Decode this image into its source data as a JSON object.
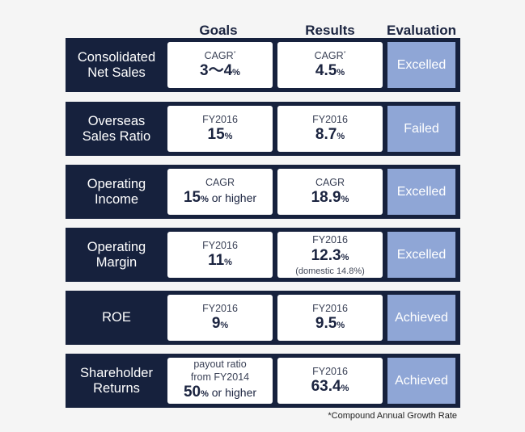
{
  "headers": {
    "goals": "Goals",
    "results": "Results",
    "evaluation": "Evaluation"
  },
  "rows": [
    {
      "label": "Consolidated\nNet Sales",
      "goal": {
        "top": "CAGR",
        "top_mark": "*",
        "value": "3～4",
        "unit": "%",
        "suffix": ""
      },
      "result": {
        "top": "CAGR",
        "top_mark": "*",
        "value": "4.5",
        "unit": "%",
        "note": ""
      },
      "evaluation": "Excelled"
    },
    {
      "label": "Overseas\nSales Ratio",
      "goal": {
        "top": "FY2016",
        "top_mark": "",
        "value": "15",
        "unit": "%",
        "suffix": ""
      },
      "result": {
        "top": "FY2016",
        "top_mark": "",
        "value": "8.7",
        "unit": "%",
        "note": ""
      },
      "evaluation": "Failed"
    },
    {
      "label": "Operating\nIncome",
      "goal": {
        "top": "CAGR",
        "top_mark": "",
        "value": "15",
        "unit": "%",
        "suffix": " or higher"
      },
      "result": {
        "top": "CAGR",
        "top_mark": "",
        "value": "18.9",
        "unit": "%",
        "note": ""
      },
      "evaluation": "Excelled"
    },
    {
      "label": "Operating\nMargin",
      "goal": {
        "top": "FY2016",
        "top_mark": "",
        "value": "11",
        "unit": "%",
        "suffix": ""
      },
      "result": {
        "top": "FY2016",
        "top_mark": "",
        "value": "12.3",
        "unit": "%",
        "note": "(domestic 14.8%)"
      },
      "evaluation": "Excelled"
    },
    {
      "label": "ROE",
      "goal": {
        "top": "FY2016",
        "top_mark": "",
        "value": "9",
        "unit": "%",
        "suffix": ""
      },
      "result": {
        "top": "FY2016",
        "top_mark": "",
        "value": "9.5",
        "unit": "%",
        "note": ""
      },
      "evaluation": "Achieved"
    },
    {
      "label": "Shareholder\nReturns",
      "goal": {
        "top": "payout ratio\nfrom FY2014",
        "top_mark": "",
        "value": "50",
        "unit": "%",
        "suffix": " or higher"
      },
      "result": {
        "top": "FY2016",
        "top_mark": "",
        "value": "63.4",
        "unit": "%",
        "note": ""
      },
      "evaluation": "Achieved"
    }
  ],
  "footnote": "*Compound Annual Growth Rate"
}
